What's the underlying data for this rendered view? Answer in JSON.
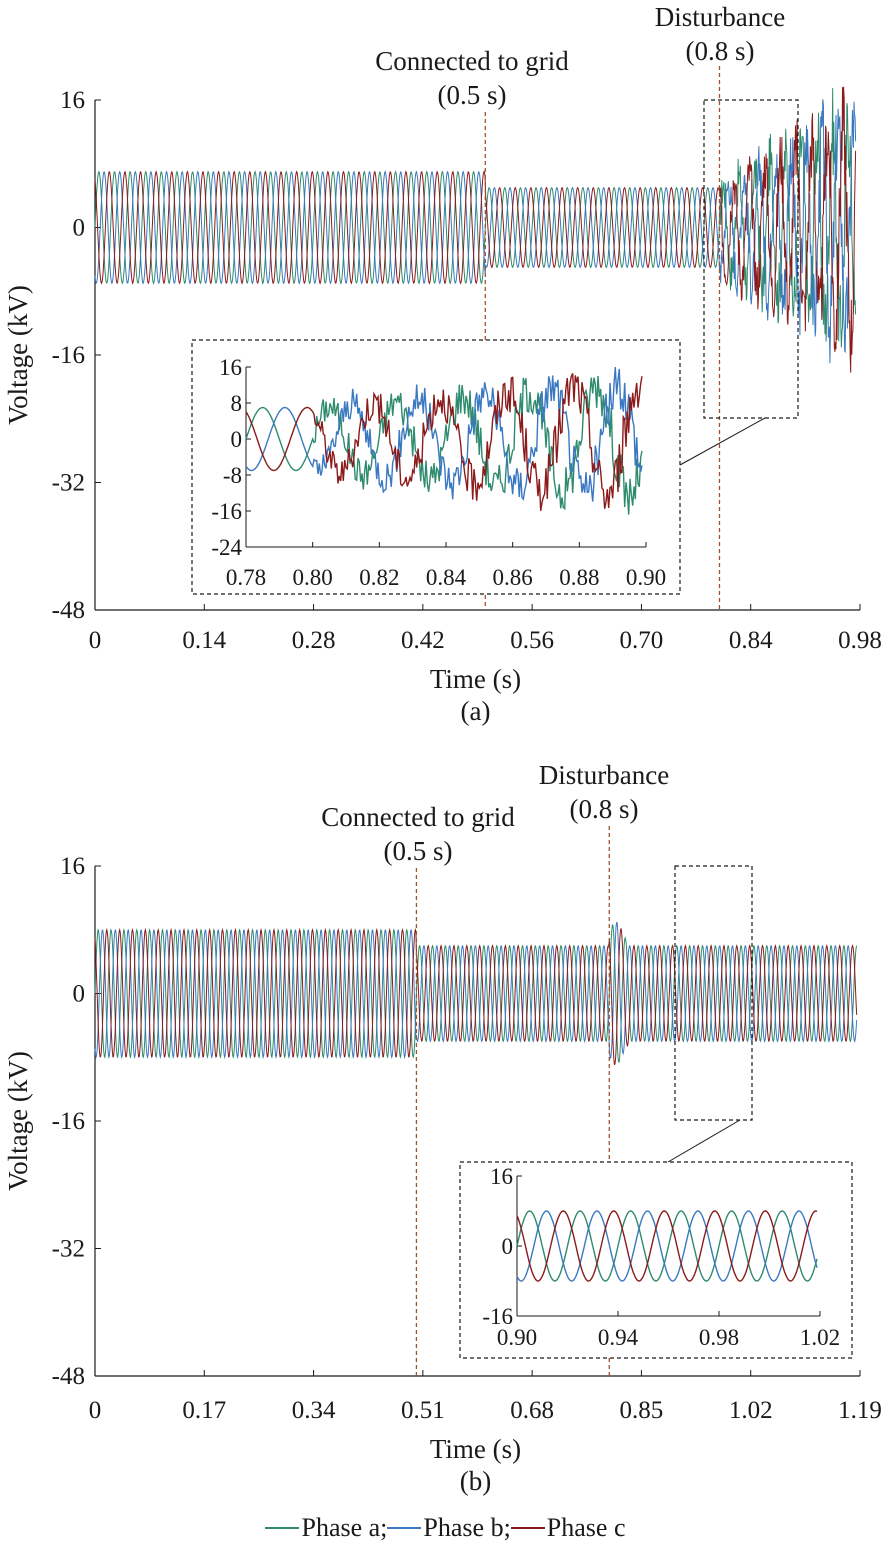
{
  "colors": {
    "phase_a": "#2e8b6e",
    "phase_b": "#3a78c2",
    "phase_c": "#8b1a1a",
    "event_line": "#a0522d",
    "axis": "#1a1a1a"
  },
  "legend": {
    "items": [
      {
        "label": "Phase a;",
        "color": "#2e8b6e"
      },
      {
        "label": "Phase b;",
        "color": "#3a78c2"
      },
      {
        "label": "Phase c",
        "color": "#8b1a1a"
      }
    ]
  },
  "chart_data": [
    {
      "type": "line",
      "panel_label": "(a)",
      "xlabel": "Time (s)",
      "ylabel": "Voltage (kV)",
      "xlim": [
        0,
        0.98
      ],
      "ylim": [
        -48,
        16
      ],
      "xticks": [
        "0",
        "0.14",
        "0.28",
        "0.42",
        "0.56",
        "0.70",
        "0.84",
        "0.98"
      ],
      "yticks": [
        "16",
        "0",
        "-16",
        "-32",
        "-48"
      ],
      "events": [
        {
          "t": 0.5,
          "label": "Connected to grid",
          "sublabel": "(0.5 s)"
        },
        {
          "t": 0.8,
          "label": "Disturbance",
          "sublabel": "(0.8 s)"
        }
      ],
      "series": [
        {
          "name": "Phase a",
          "amplitude_kV": [
            7,
            5,
            13
          ],
          "note": "≈7 kV before 0.5 s, ≈5 kV after grid connection, growing oscillation to ≈13 kV after 0.8 s"
        },
        {
          "name": "Phase b",
          "amplitude_kV": [
            7,
            5,
            13
          ]
        },
        {
          "name": "Phase c",
          "amplitude_kV": [
            7,
            5,
            13
          ]
        }
      ],
      "zoom_region": {
        "x": [
          0.78,
          0.9
        ],
        "y": [
          -24,
          16
        ]
      },
      "inset": {
        "xlim": [
          0.78,
          0.9
        ],
        "ylim": [
          -24,
          16
        ],
        "xticks": [
          "0.78",
          "0.80",
          "0.82",
          "0.84",
          "0.86",
          "0.88",
          "0.90"
        ],
        "yticks": [
          "16",
          "8",
          "0",
          "-8",
          "-16",
          "-24"
        ]
      }
    },
    {
      "type": "line",
      "panel_label": "(b)",
      "xlabel": "Time (s)",
      "ylabel": "Voltage (kV)",
      "xlim": [
        0,
        1.19
      ],
      "ylim": [
        -48,
        16
      ],
      "xticks": [
        "0",
        "0.17",
        "0.34",
        "0.51",
        "0.68",
        "0.85",
        "1.02",
        "1.19"
      ],
      "yticks": [
        "16",
        "0",
        "-16",
        "-32",
        "-48"
      ],
      "events": [
        {
          "t": 0.5,
          "label": "Connected to grid",
          "sublabel": "(0.5 s)"
        },
        {
          "t": 0.8,
          "label": "Disturbance",
          "sublabel": "(0.8 s)"
        }
      ],
      "series": [
        {
          "name": "Phase a",
          "amplitude_kV": [
            8,
            6,
            6
          ],
          "note": "≈8 kV before 0.5 s, ≈6 kV after, brief spike at 0.8 s then stable"
        },
        {
          "name": "Phase b",
          "amplitude_kV": [
            8,
            6,
            6
          ]
        },
        {
          "name": "Phase c",
          "amplitude_kV": [
            8,
            6,
            6
          ]
        }
      ],
      "zoom_region": {
        "x": [
          0.9,
          1.02
        ],
        "y": [
          -16,
          16
        ]
      },
      "inset": {
        "xlim": [
          0.9,
          1.02
        ],
        "ylim": [
          -16,
          16
        ],
        "xticks": [
          "0.90",
          "0.94",
          "0.98",
          "1.02"
        ],
        "yticks": [
          "16",
          "0",
          "-16"
        ]
      }
    }
  ]
}
